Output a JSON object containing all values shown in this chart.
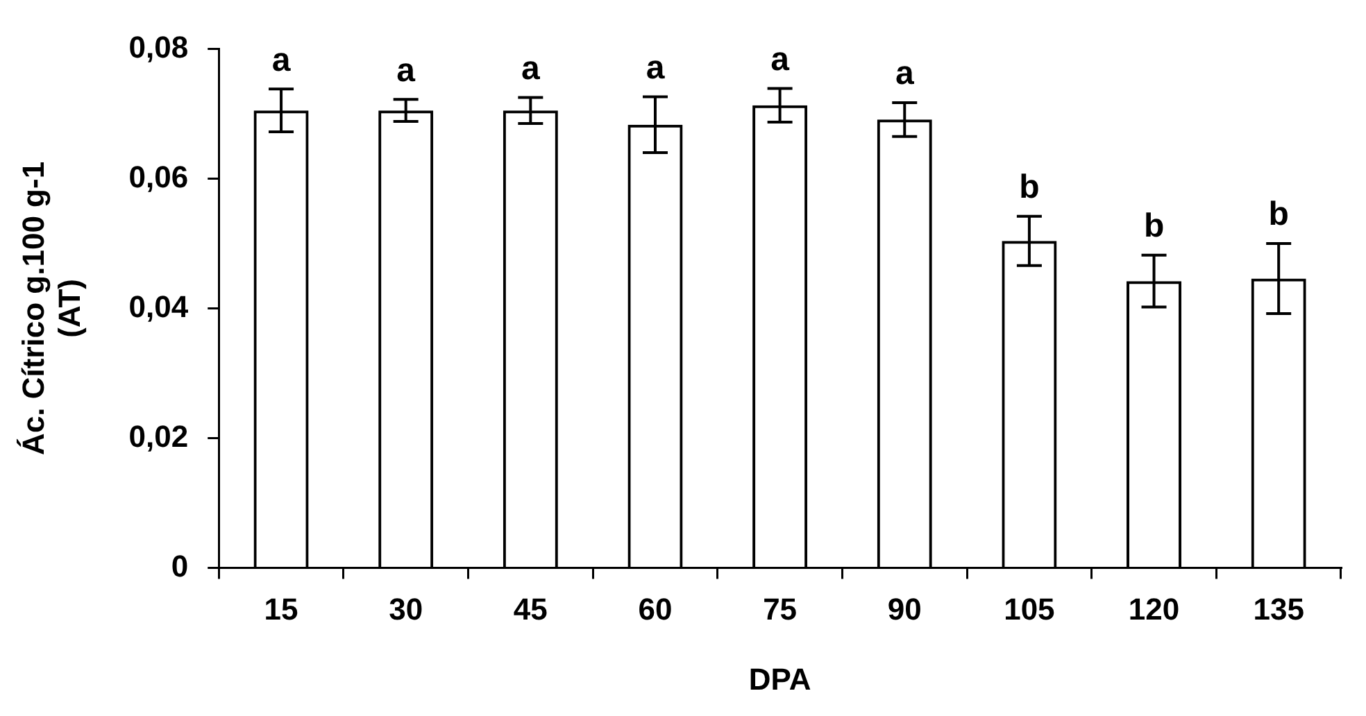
{
  "chart_data": {
    "type": "bar",
    "xlabel": "DPA",
    "ylabel": "Ác. Cítrico g.100 g-1\n(AT)",
    "categories": [
      "15",
      "30",
      "45",
      "60",
      "75",
      "90",
      "105",
      "120",
      "135"
    ],
    "values": [
      0.0705,
      0.0705,
      0.0705,
      0.0683,
      0.0713,
      0.0691,
      0.0504,
      0.0442,
      0.0446
    ],
    "errors": [
      0.0033,
      0.0017,
      0.002,
      0.0043,
      0.0026,
      0.0026,
      0.0038,
      0.004,
      0.0054
    ],
    "color": "#000000",
    "ylim": [
      0,
      0.08
    ],
    "yticks": [
      0,
      {
        "value": 0.02,
        "label": "0,02"
      },
      {
        "value": 0.04,
        "label": "0,04"
      },
      {
        "value": 0.06,
        "label": "0,06"
      },
      {
        "value": 0.08,
        "label": "0,08"
      }
    ],
    "annotations": [
      {
        "text": "a",
        "x": "15",
        "y": 0.0738
      },
      {
        "text": "a",
        "x": "30",
        "y": 0.0722
      },
      {
        "text": "a",
        "x": "45",
        "y": 0.0725
      },
      {
        "text": "a",
        "x": "60",
        "y": 0.0726
      },
      {
        "text": "a",
        "x": "75",
        "y": 0.0739
      },
      {
        "text": "a",
        "x": "90",
        "y": 0.0717
      },
      {
        "text": "b",
        "x": "105",
        "y": 0.0542
      },
      {
        "text": "b",
        "x": "120",
        "y": 0.0482
      },
      {
        "text": "b",
        "x": "135",
        "y": 0.05
      }
    ],
    "grid": false,
    "legend": false
  }
}
